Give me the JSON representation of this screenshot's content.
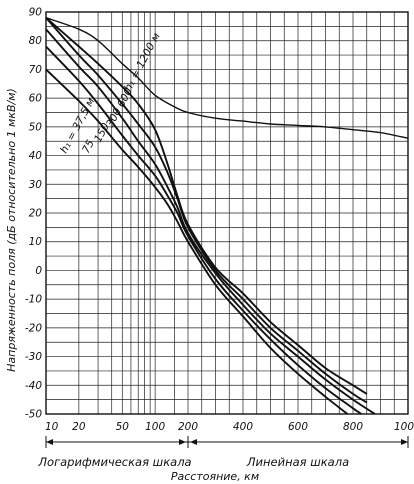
{
  "chart_data": {
    "type": "line",
    "title": "",
    "ylabel": "Напряженность поля (дБ относительно 1 мкВ/м)",
    "xlabel": "Расстояние, км",
    "x_scale_labels": [
      "Логарифмическая шкала",
      "Линейная шкала"
    ],
    "x_scale_note": "logarithmic from 10 to 200 km, linear from 200 to 1000 km",
    "x_tick_labels": [
      "10",
      "20",
      "50",
      "100",
      "200",
      "400",
      "600",
      "800",
      "1000км"
    ],
    "y_tick_labels": [
      "90",
      "80",
      "70",
      "60",
      "50",
      "40",
      "30",
      "20",
      "10",
      "0",
      "-10",
      "-20",
      "-30",
      "-40",
      "-50"
    ],
    "ylim": [
      -50,
      90
    ],
    "xlim": [
      10,
      1000
    ],
    "grid": true,
    "legend": "none (curves labelled directly)",
    "series": [
      {
        "name": "h₁ = 1200 м",
        "label_text": "h₁ = 1200 м",
        "points": [
          [
            10,
            88
          ],
          [
            20,
            84
          ],
          [
            30,
            80
          ],
          [
            50,
            72
          ],
          [
            70,
            67
          ],
          [
            100,
            61
          ],
          [
            150,
            57
          ],
          [
            200,
            55
          ],
          [
            300,
            53
          ],
          [
            400,
            52
          ],
          [
            500,
            51
          ],
          [
            600,
            50.5
          ],
          [
            700,
            50
          ],
          [
            800,
            49
          ],
          [
            900,
            48
          ],
          [
            1000,
            46
          ]
        ]
      },
      {
        "name": "600",
        "label_text": "600",
        "points": [
          [
            10,
            88
          ],
          [
            20,
            78
          ],
          [
            30,
            72
          ],
          [
            50,
            64
          ],
          [
            70,
            58
          ],
          [
            100,
            49
          ],
          [
            130,
            37
          ],
          [
            160,
            26
          ],
          [
            200,
            16
          ],
          [
            300,
            1
          ],
          [
            400,
            -8
          ],
          [
            500,
            -18
          ],
          [
            600,
            -26
          ],
          [
            700,
            -34
          ],
          [
            800,
            -40
          ],
          [
            850,
            -43
          ]
        ]
      },
      {
        "name": "300",
        "label_text": "300",
        "points": [
          [
            10,
            88
          ],
          [
            20,
            75
          ],
          [
            30,
            68
          ],
          [
            50,
            58
          ],
          [
            70,
            51
          ],
          [
            100,
            43
          ],
          [
            130,
            34
          ],
          [
            160,
            25
          ],
          [
            200,
            15
          ],
          [
            300,
            0
          ],
          [
            400,
            -10
          ],
          [
            500,
            -20
          ],
          [
            600,
            -28
          ],
          [
            700,
            -36
          ],
          [
            800,
            -43
          ],
          [
            850,
            -46
          ]
        ]
      },
      {
        "name": "150",
        "label_text": "150",
        "points": [
          [
            10,
            84
          ],
          [
            20,
            71
          ],
          [
            30,
            64
          ],
          [
            50,
            53
          ],
          [
            70,
            45
          ],
          [
            100,
            37
          ],
          [
            130,
            29
          ],
          [
            160,
            22
          ],
          [
            200,
            13
          ],
          [
            300,
            -1
          ],
          [
            400,
            -12
          ],
          [
            500,
            -22
          ],
          [
            600,
            -30
          ],
          [
            700,
            -38
          ],
          [
            800,
            -45
          ],
          [
            880,
            -50
          ]
        ]
      },
      {
        "name": "75",
        "label_text": "75",
        "points": [
          [
            10,
            78
          ],
          [
            20,
            66
          ],
          [
            30,
            58
          ],
          [
            50,
            47
          ],
          [
            70,
            40
          ],
          [
            100,
            33
          ],
          [
            130,
            26
          ],
          [
            160,
            20
          ],
          [
            200,
            12
          ],
          [
            300,
            -3
          ],
          [
            400,
            -14
          ],
          [
            500,
            -24
          ],
          [
            600,
            -33
          ],
          [
            700,
            -41
          ],
          [
            800,
            -48
          ],
          [
            830,
            -50
          ]
        ]
      },
      {
        "name": "h₁ = 37,5 м",
        "label_text": "h₁ = 37,5 м",
        "points": [
          [
            10,
            70
          ],
          [
            20,
            59
          ],
          [
            30,
            52
          ],
          [
            50,
            42
          ],
          [
            70,
            36
          ],
          [
            100,
            29
          ],
          [
            130,
            23
          ],
          [
            160,
            17
          ],
          [
            200,
            10
          ],
          [
            300,
            -5
          ],
          [
            400,
            -16
          ],
          [
            500,
            -27
          ],
          [
            600,
            -36
          ],
          [
            700,
            -44
          ],
          [
            780,
            -50
          ]
        ]
      }
    ]
  }
}
